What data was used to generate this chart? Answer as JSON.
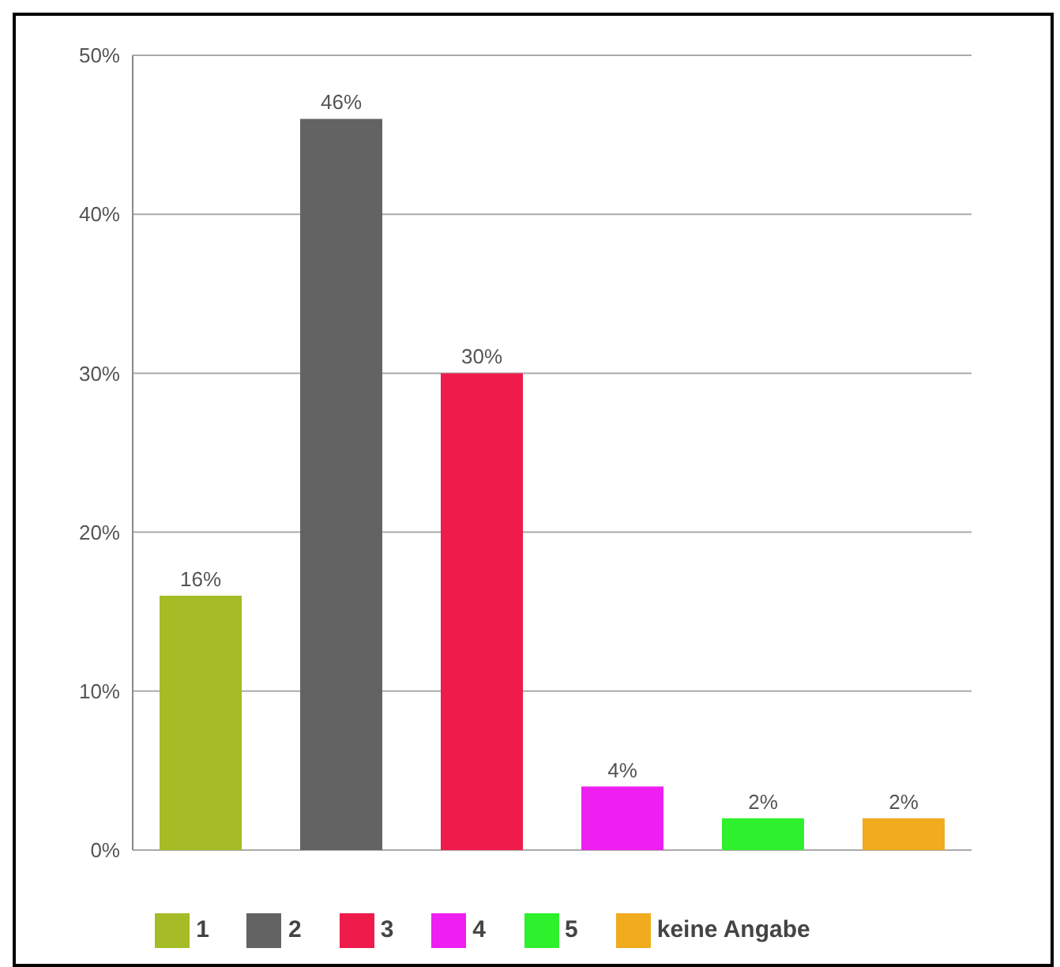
{
  "chart_data": {
    "type": "bar",
    "categories": [
      null
    ],
    "series": [
      {
        "name": "1",
        "color": "#a5bc26",
        "values": [
          16
        ],
        "value_labels": [
          "16%"
        ]
      },
      {
        "name": "2",
        "color": "#636363",
        "values": [
          46
        ],
        "value_labels": [
          "46%"
        ]
      },
      {
        "name": "3",
        "color": "#ee1b4b",
        "values": [
          30
        ],
        "value_labels": [
          "30%"
        ]
      },
      {
        "name": "4",
        "color": "#ee1ff0",
        "values": [
          4
        ],
        "value_labels": [
          "4%"
        ]
      },
      {
        "name": "5",
        "color": "#2ff02c",
        "values": [
          2
        ],
        "value_labels": [
          "2%"
        ]
      },
      {
        "name": "keine Angabe",
        "color": "#f0ab1f",
        "values": [
          2
        ],
        "value_labels": [
          "2%"
        ]
      }
    ],
    "ylim": [
      0,
      50
    ],
    "yticks": [
      {
        "value": 0,
        "label": "0%"
      },
      {
        "value": 10,
        "label": "10%"
      },
      {
        "value": 20,
        "label": "20%"
      },
      {
        "value": 30,
        "label": "30%"
      },
      {
        "value": 40,
        "label": "40%"
      },
      {
        "value": 50,
        "label": "50%"
      }
    ],
    "grid": "y",
    "legend": "bottom",
    "tick_labels": "y"
  }
}
